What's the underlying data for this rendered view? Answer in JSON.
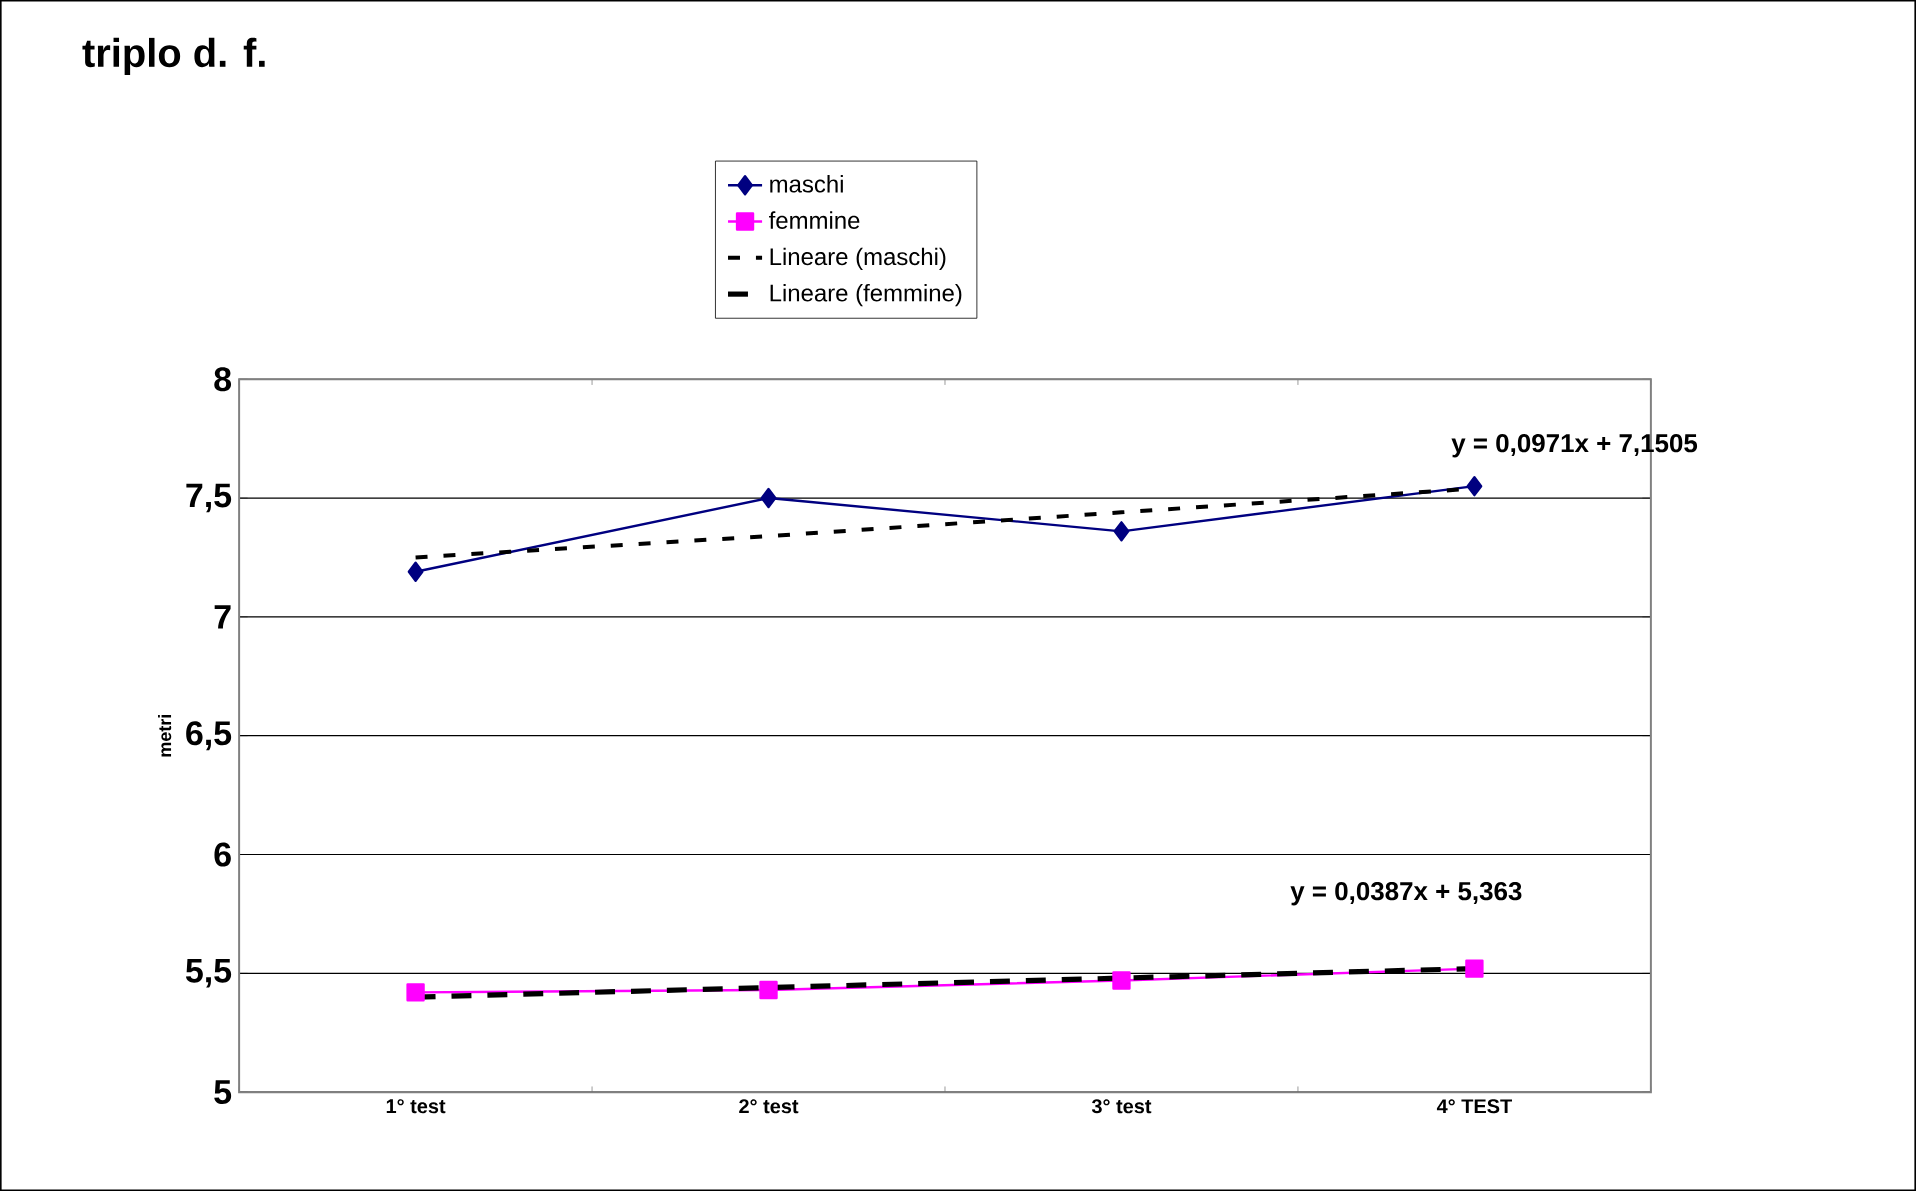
{
  "chart_data": {
    "type": "line",
    "title": "triplo d. f.",
    "ylabel": "metri",
    "categories": [
      "1° test",
      "2° test",
      "3° test",
      "4° TEST"
    ],
    "series": [
      {
        "name": "maschi",
        "color": "#000080",
        "values": [
          7.19,
          7.5,
          7.36,
          7.55
        ],
        "marker": "diamond",
        "line_style": "solid"
      },
      {
        "name": "femmine",
        "color": "#ff00ff",
        "values": [
          5.42,
          5.43,
          5.47,
          5.52
        ],
        "marker": "square",
        "line_style": "solid"
      },
      {
        "name": "Lineare (maschi)",
        "color": "#000000",
        "values": [
          7.25,
          7.34,
          7.44,
          7.54
        ],
        "marker": "none",
        "line_style": "dotted"
      },
      {
        "name": "Lineare (femmine)",
        "color": "#000000",
        "values": [
          5.4,
          5.44,
          5.48,
          5.52
        ],
        "marker": "none",
        "line_style": "dashed"
      }
    ],
    "ylim": [
      5,
      8
    ],
    "yticks": [
      5,
      {
        "value": 5.5,
        "label": "5,5"
      },
      6,
      {
        "value": 6.5,
        "label": "6,5"
      },
      7,
      {
        "value": 7.5,
        "label": "7,5"
      },
      8
    ],
    "grid": "y",
    "legend": "top",
    "annotations": [
      {
        "text": "y = 0,0971x + 7,1505",
        "x": "4° TEST",
        "y": 7.54
      },
      {
        "text": "y = 0,0387x + 5,363",
        "x": "4° TEST",
        "y": 5.52
      }
    ]
  }
}
